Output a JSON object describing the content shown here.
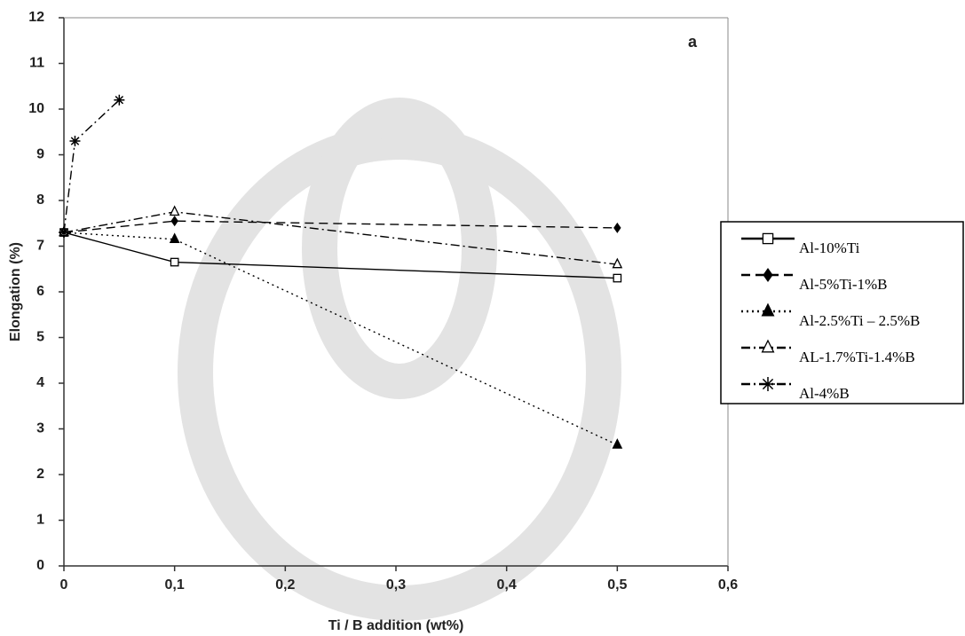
{
  "chart_data": {
    "type": "line",
    "annotation": "a",
    "xlabel": "Ti / B addition (wt%)",
    "ylabel": "Elongation (%)",
    "xlim": [
      0,
      0.6
    ],
    "ylim": [
      0,
      12
    ],
    "xticks": [
      0,
      {
        "value": 0.1,
        "label": "0,1"
      },
      {
        "value": 0.2,
        "label": "0,2"
      },
      {
        "value": 0.3,
        "label": "0,3"
      },
      {
        "value": 0.4,
        "label": "0,4"
      },
      {
        "value": 0.5,
        "label": "0,5"
      },
      {
        "value": 0.6,
        "label": "0,6"
      }
    ],
    "yticks": [
      0,
      1,
      2,
      3,
      4,
      5,
      6,
      7,
      8,
      9,
      10,
      11,
      12
    ],
    "legend": "right",
    "series": [
      {
        "name": "Al-10%Ti",
        "color": "#000000",
        "dash": "solid",
        "marker": "square",
        "x": [
          0,
          0.1,
          0.5
        ],
        "values": [
          7.3,
          6.65,
          6.3
        ]
      },
      {
        "name": "Al-5%Ti-1%B",
        "color": "#000000",
        "dash": "dashed",
        "marker": "diamond",
        "x": [
          0,
          0.1,
          0.5
        ],
        "values": [
          7.3,
          7.55,
          7.4
        ]
      },
      {
        "name": "Al-2.5%Ti – 2.5%B",
        "color": "#000000",
        "dash": "dotted",
        "marker": "triangle",
        "x": [
          0,
          0.1,
          0.5
        ],
        "values": [
          7.3,
          7.15,
          2.65
        ]
      },
      {
        "name": "AL-1.7%Ti-1.4%B",
        "color": "#000000",
        "dash": "dashdot",
        "marker": "open-triangle",
        "x": [
          0,
          0.1,
          0.5
        ],
        "values": [
          7.3,
          7.75,
          6.6
        ]
      },
      {
        "name": "Al-4%B",
        "color": "#000000",
        "dash": "dashdot",
        "marker": "asterisk",
        "x": [
          0,
          0.01,
          0.05
        ],
        "values": [
          7.3,
          9.3,
          10.2
        ]
      }
    ]
  }
}
